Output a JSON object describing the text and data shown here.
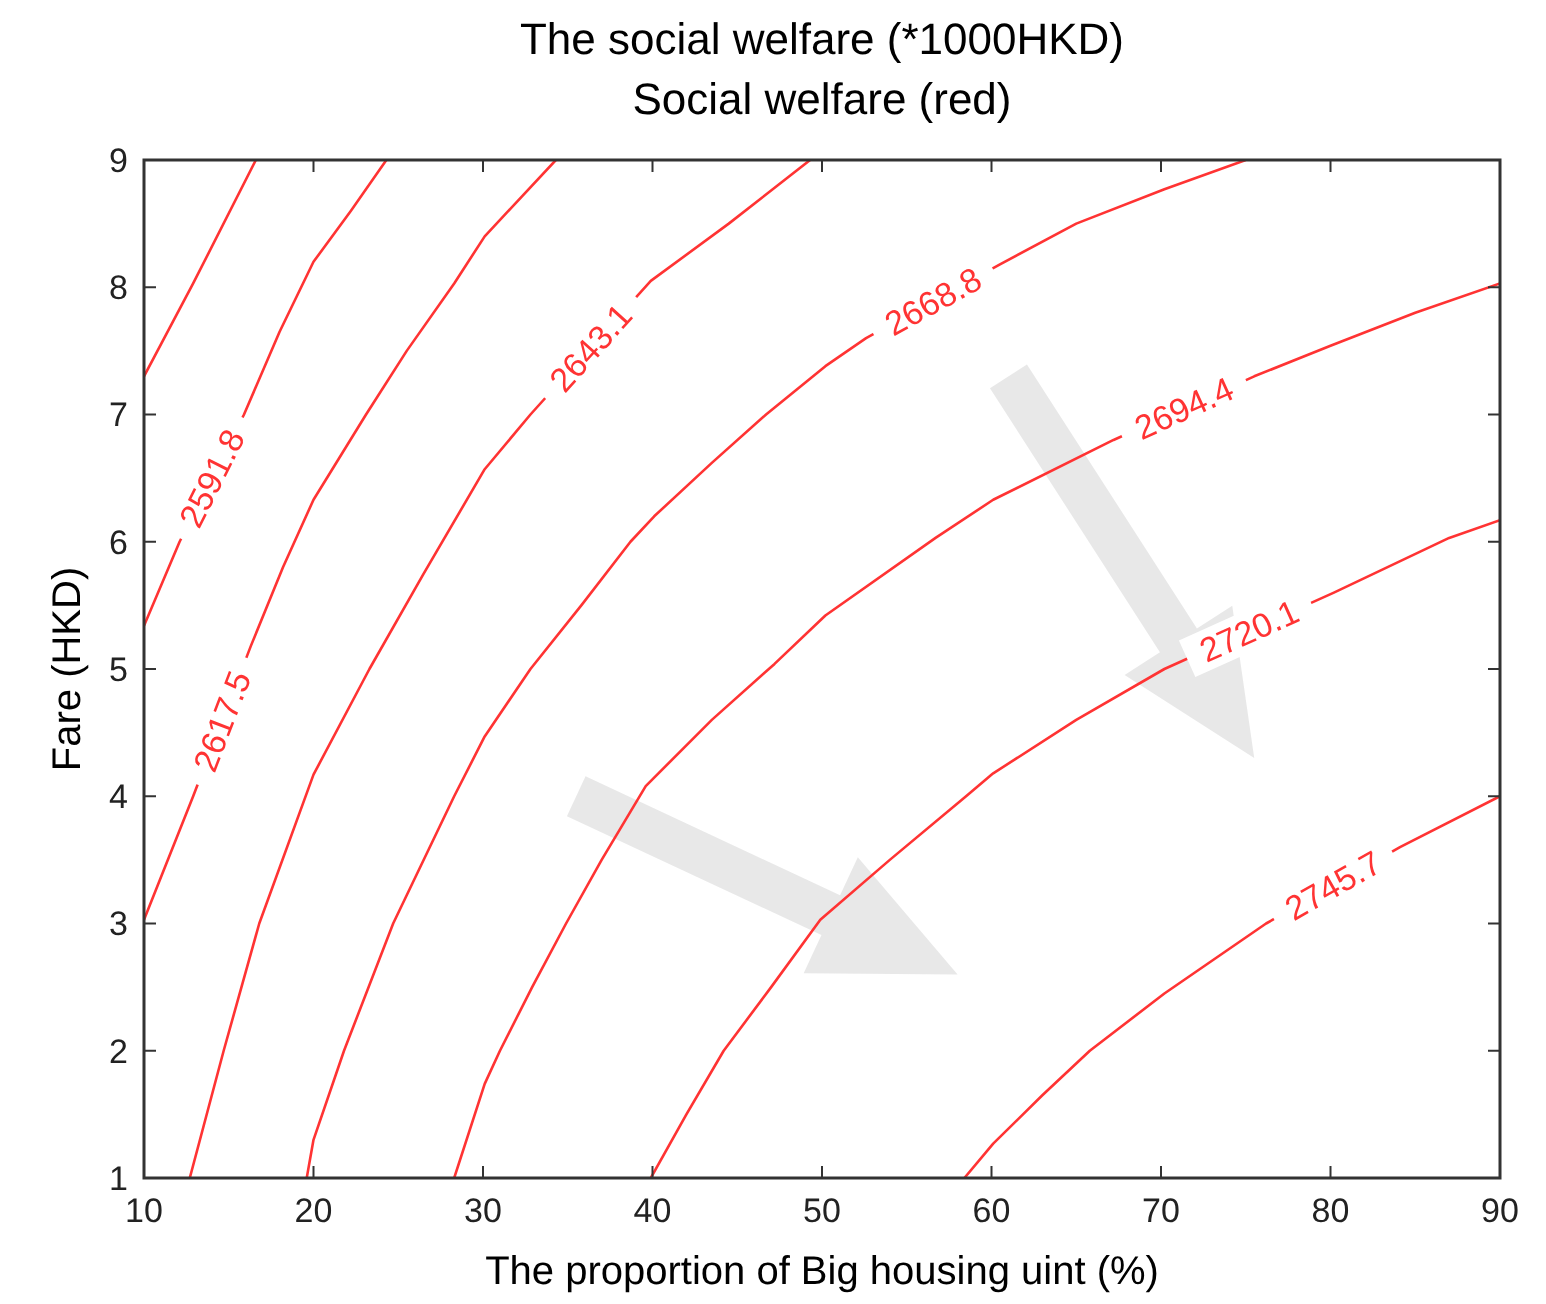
{
  "chart_data": {
    "type": "line",
    "title": "The social welfare (*1000HKD)",
    "subtitle": "Social welfare (red)",
    "xlabel": "The proportion of Big housing uint (%)",
    "ylabel": "Fare (HKD)",
    "xlim": [
      10,
      90
    ],
    "ylim": [
      1,
      9
    ],
    "xticks": [
      10,
      20,
      30,
      40,
      50,
      60,
      70,
      80,
      90
    ],
    "yticks": [
      1,
      2,
      3,
      4,
      5,
      6,
      7,
      8,
      9
    ],
    "series": [
      {
        "color": "#ff3333",
        "x": [
          10,
          12.9,
          16.6
        ],
        "values": [
          7.3,
          8.03,
          9
        ]
      },
      {
        "name": "2591.8",
        "color": "#ff3333",
        "x": [
          10,
          12.1,
          15.9,
          18,
          20,
          22.2,
          24.3
        ],
        "values": [
          5.34,
          6,
          7,
          7.65,
          8.2,
          8.6,
          9
        ]
      },
      {
        "name": "2617.5",
        "color": "#ff3333",
        "x": [
          10,
          12.9,
          16.3,
          18.2,
          20,
          23.1,
          25.5,
          28.3,
          30.1,
          34.3
        ],
        "values": [
          3.03,
          4,
          5.18,
          5.8,
          6.33,
          7,
          7.5,
          8.03,
          8.4,
          9
        ]
      },
      {
        "name": "2643.1",
        "color": "#ff3333",
        "x": [
          12.7,
          14.7,
          16.8,
          20,
          23.3,
          26.5,
          30.1,
          32.8,
          39.9,
          44.5,
          49.3
        ],
        "values": [
          1,
          2,
          3,
          4.17,
          5,
          5.75,
          6.57,
          7,
          8.05,
          8.5,
          9
        ]
      },
      {
        "name": "2668.8",
        "color": "#ff3333",
        "x": [
          19.6,
          20,
          21.8,
          24.7,
          28.3,
          30.1,
          32.8,
          35.8,
          38.7,
          40.1,
          43.5,
          46.7,
          50.2,
          52.6,
          60.5,
          65,
          70.2,
          75
        ],
        "values": [
          1,
          1.3,
          2,
          3,
          4,
          4.47,
          5,
          5.5,
          6,
          6.2,
          6.62,
          7,
          7.38,
          7.6,
          8.18,
          8.5,
          8.77,
          9
        ]
      },
      {
        "name": "2694.4",
        "color": "#ff3333",
        "x": [
          28.3,
          30.1,
          31,
          32.9,
          34.9,
          37,
          39.6,
          43.5,
          47.2,
          50.2,
          56.7,
          60.1,
          67.2,
          75.5,
          80,
          85,
          90
        ],
        "values": [
          1,
          1.74,
          2,
          2.5,
          3,
          3.5,
          4.08,
          4.6,
          5.04,
          5.42,
          6.03,
          6.33,
          6.8,
          7.3,
          7.54,
          7.8,
          8.03
        ]
      },
      {
        "name": "2720.1",
        "color": "#ff3333",
        "x": [
          39.9,
          42,
          44.2,
          47,
          49.9,
          54,
          58.5,
          60.1,
          65,
          70.2,
          80.2,
          87,
          90
        ],
        "values": [
          1,
          1.5,
          2,
          2.5,
          3.03,
          3.5,
          4,
          4.18,
          4.6,
          5,
          5.6,
          6.03,
          6.17
        ]
      },
      {
        "name": "2745.7",
        "color": "#ff3333",
        "x": [
          58.4,
          60.1,
          63,
          65.8,
          70.2,
          76.2,
          84.1,
          90
        ],
        "values": [
          1,
          1.27,
          1.65,
          2,
          2.45,
          3,
          3.6,
          4
        ]
      }
    ]
  }
}
